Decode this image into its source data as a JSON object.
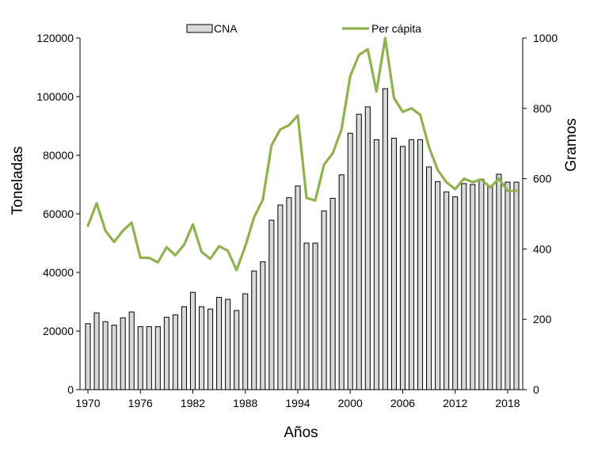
{
  "chart_data": {
    "type": "bar",
    "xlabel": "Años",
    "ylabel_left": "Toneladas",
    "ylabel_right": "Gramos",
    "ylim_left": [
      0,
      120000
    ],
    "ylim_right": [
      0,
      1000
    ],
    "yticks_left": [
      "0",
      "20000",
      "40000",
      "60000",
      "80000",
      "100000",
      "120000"
    ],
    "yticks_right": [
      "0",
      "200",
      "400",
      "600",
      "800",
      "1000"
    ],
    "xticks": [
      "1970",
      "1976",
      "1982",
      "1988",
      "1994",
      "2000",
      "2006",
      "2012",
      "2018"
    ],
    "grid": false,
    "legend_position": "top",
    "x": [
      1970,
      1971,
      1972,
      1973,
      1974,
      1975,
      1976,
      1977,
      1978,
      1979,
      1980,
      1981,
      1982,
      1983,
      1984,
      1985,
      1986,
      1987,
      1988,
      1989,
      1990,
      1991,
      1992,
      1993,
      1994,
      1995,
      1996,
      1997,
      1998,
      1999,
      2000,
      2001,
      2002,
      2003,
      2004,
      2005,
      2006,
      2007,
      2008,
      2009,
      2010,
      2011,
      2012,
      2013,
      2014,
      2015,
      2016,
      2017,
      2018,
      2019
    ],
    "series": [
      {
        "name": "CNA",
        "type": "bar",
        "axis": "left",
        "color": "#d9d9d9",
        "edge_color": "#000000",
        "values": [
          22500,
          26200,
          23200,
          22000,
          24500,
          26500,
          21500,
          21500,
          21500,
          24700,
          25500,
          28300,
          33200,
          28300,
          27500,
          31500,
          30800,
          27000,
          32700,
          40500,
          43600,
          57800,
          63000,
          65500,
          69500,
          50000,
          50000,
          61000,
          65300,
          73300,
          87500,
          94000,
          96500,
          85300,
          102700,
          85800,
          83000,
          85300,
          85300,
          76000,
          71000,
          67500,
          65800,
          70300,
          70000,
          71800,
          69500,
          73500,
          70800,
          70800
        ]
      },
      {
        "name": "Per cápita",
        "type": "line",
        "axis": "right",
        "color": "#8fb24e",
        "values": [
          466,
          530,
          452,
          420,
          452,
          475,
          375,
          375,
          362,
          405,
          382,
          412,
          470,
          392,
          372,
          408,
          395,
          340,
          408,
          490,
          540,
          695,
          740,
          752,
          780,
          545,
          538,
          640,
          672,
          740,
          892,
          952,
          968,
          848,
          1000,
          830,
          790,
          800,
          782,
          690,
          625,
          590,
          570,
          600,
          590,
          598,
          575,
          600,
          565,
          565
        ]
      }
    ]
  }
}
